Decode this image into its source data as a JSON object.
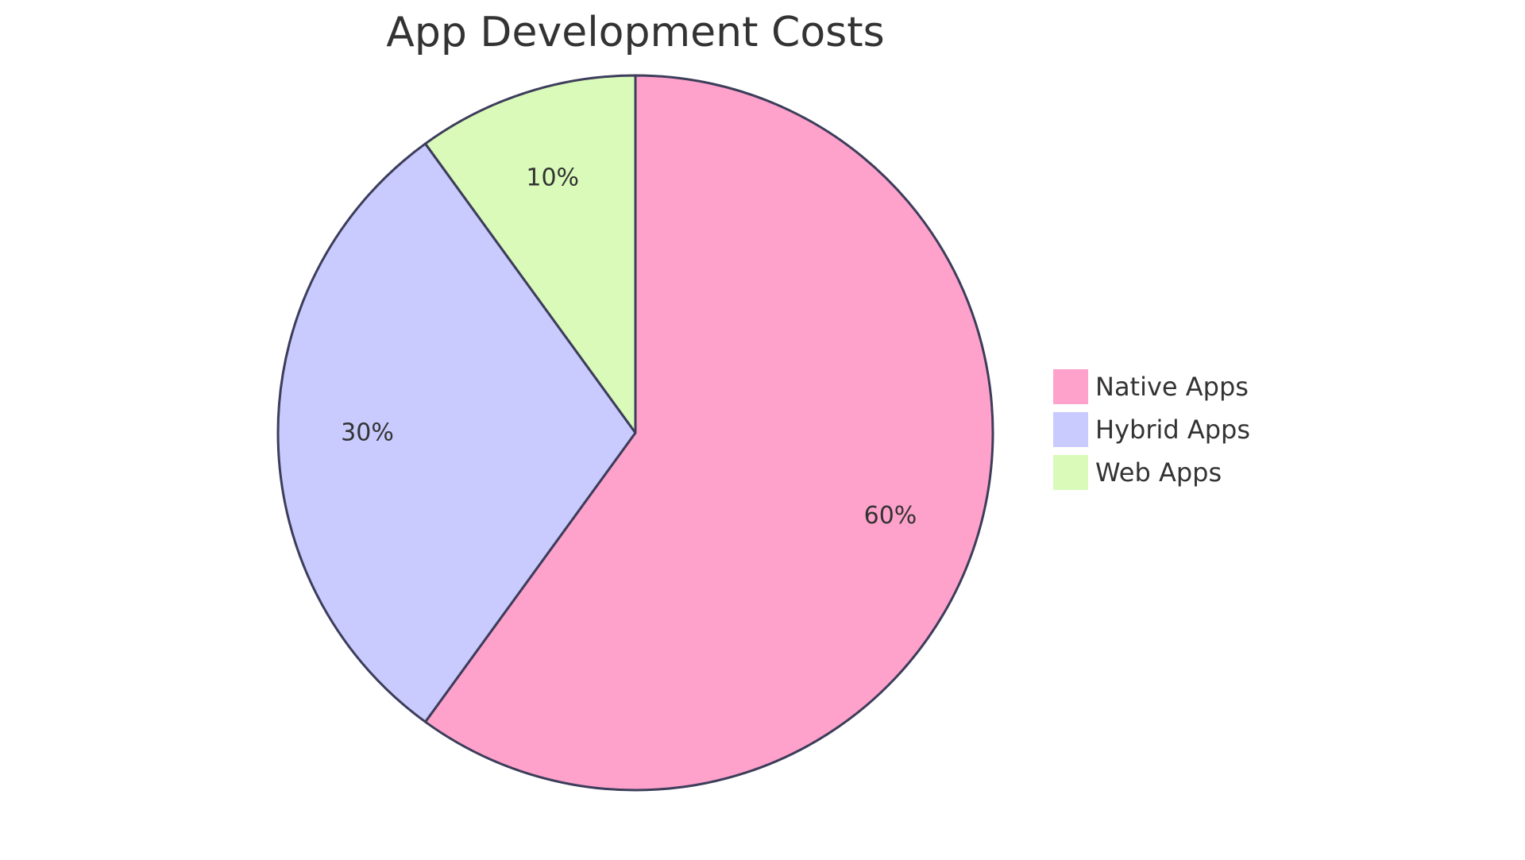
{
  "chart_data": {
    "type": "pie",
    "title": "App Development Costs",
    "legend_position": "right",
    "slice_border_color": "#3c3d5a",
    "slices": [
      {
        "label": "Native Apps",
        "value": 60,
        "display": "60%",
        "color": "#ffa2cb"
      },
      {
        "label": "Hybrid Apps",
        "value": 30,
        "display": "30%",
        "color": "#c9cafe"
      },
      {
        "label": "Web Apps",
        "value": 10,
        "display": "10%",
        "color": "#dafab9"
      }
    ]
  }
}
